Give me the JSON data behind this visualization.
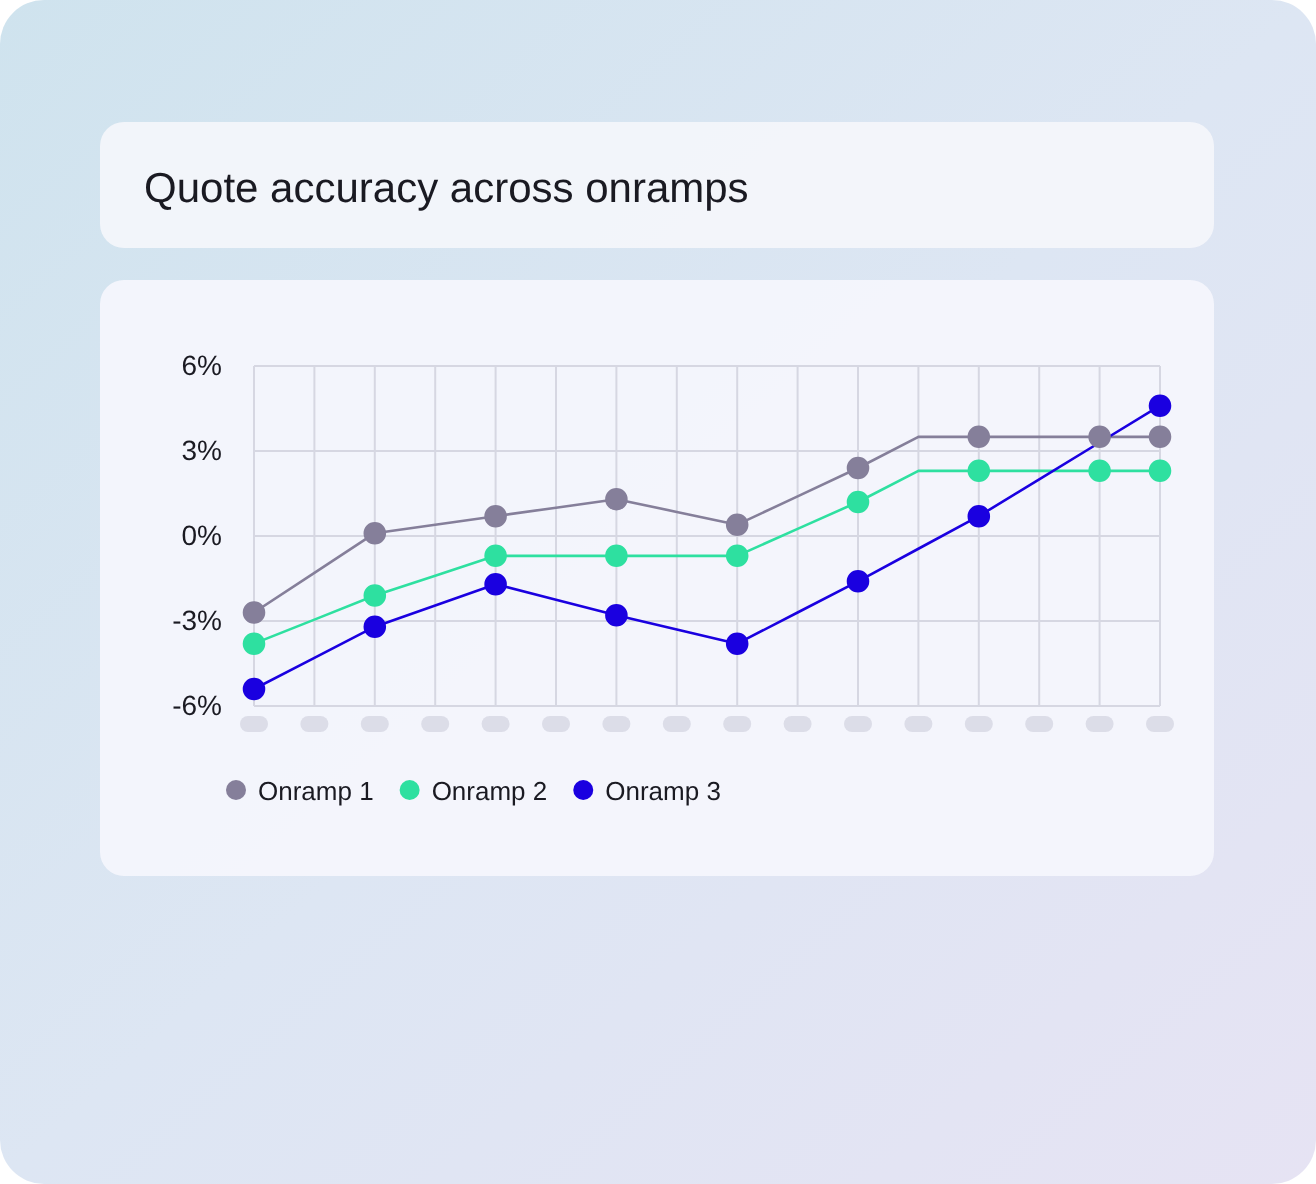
{
  "chart_data": {
    "type": "line",
    "title": "Quote accuracy across onramps",
    "categories": [
      null,
      null,
      null,
      null,
      null,
      null,
      null,
      null,
      null,
      null,
      null,
      null,
      null,
      null,
      null,
      null
    ],
    "series": [
      {
        "name": "Onramp 1",
        "color": "#857f9a",
        "marker": "none",
        "values": [
          -2.7,
          -1.3,
          0.1,
          0.4,
          0.7,
          1.0,
          1.3,
          0.85,
          0.4,
          1.4,
          2.4,
          3.5,
          3.5,
          3.5,
          3.5,
          3.5
        ]
      },
      {
        "name": "Onramp 2",
        "color": "#2ee0a0",
        "marker": "none",
        "values": [
          -3.8,
          -2.95,
          -2.1,
          -1.4,
          -0.7,
          -0.7,
          -0.7,
          -0.7,
          -0.7,
          0.25,
          1.2,
          2.3,
          2.3,
          2.3,
          2.3,
          2.3
        ]
      },
      {
        "name": "Onramp 3",
        "color": "#1a00e0",
        "marker": "none",
        "values": [
          -5.4,
          -4.3,
          -3.2,
          -2.45,
          -1.7,
          -2.25,
          -2.8,
          -3.3,
          -3.8,
          -2.7,
          -1.6,
          -0.45,
          0.7,
          2.0,
          3.3,
          4.6
        ]
      },
      {
        "color": "#857f9a",
        "type": "scatter",
        "marker": "circle",
        "values": [
          -2.7,
          null,
          0.1,
          null,
          0.7,
          null,
          1.3,
          null,
          0.4,
          null,
          2.4,
          null,
          3.5,
          null,
          3.5,
          3.5
        ]
      },
      {
        "color": "#2ee0a0",
        "type": "scatter",
        "marker": "circle",
        "values": [
          -3.8,
          null,
          -2.1,
          null,
          -0.7,
          null,
          -0.7,
          null,
          -0.7,
          null,
          1.2,
          null,
          2.3,
          null,
          2.3,
          2.3
        ]
      },
      {
        "color": "#1a00e0",
        "type": "scatter",
        "marker": "circle",
        "values": [
          -5.4,
          null,
          -3.2,
          null,
          -1.7,
          null,
          -2.8,
          null,
          -3.8,
          null,
          -1.6,
          null,
          0.7,
          null,
          null,
          4.6
        ]
      }
    ],
    "ylim": [
      -6,
      6
    ],
    "yticks": [
      {
        "value": 6,
        "label": "6%"
      },
      {
        "value": 3,
        "label": "3%"
      },
      {
        "value": 0,
        "label": "0%"
      },
      {
        "value": -3,
        "label": "-3%"
      },
      {
        "value": -6,
        "label": "-6%"
      }
    ],
    "grid": true,
    "legend": "bottom"
  }
}
